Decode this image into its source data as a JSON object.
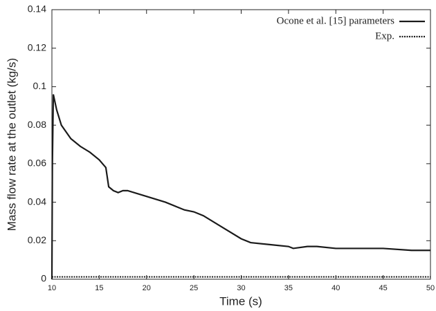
{
  "chart_data": {
    "type": "line",
    "xlabel": "Time (s)",
    "ylabel": "Mass flow rate at the outlet (kg/s)",
    "xlim": [
      10,
      50
    ],
    "ylim": [
      0,
      0.14
    ],
    "xticks": [
      10,
      15,
      20,
      25,
      30,
      35,
      40,
      45,
      50
    ],
    "yticks": [
      0,
      0.02,
      0.04,
      0.06,
      0.08,
      0.1,
      0.12,
      0.14
    ],
    "legend": "upper right",
    "series": [
      {
        "name": "Ocone et al. [15] parameters",
        "color": "#1a1a1a",
        "dash": "solid",
        "x": [
          10,
          10.05,
          10.15,
          10.5,
          11,
          12,
          13,
          14,
          15,
          15.7,
          16,
          16.5,
          17,
          17.5,
          18,
          20,
          22,
          24,
          25,
          26,
          28,
          30,
          31,
          33,
          35,
          35.5,
          37,
          38,
          40,
          42,
          45,
          48,
          50
        ],
        "values": [
          0,
          0.06,
          0.096,
          0.088,
          0.08,
          0.073,
          0.069,
          0.066,
          0.062,
          0.058,
          0.048,
          0.046,
          0.045,
          0.046,
          0.046,
          0.043,
          0.04,
          0.036,
          0.035,
          0.033,
          0.027,
          0.021,
          0.019,
          0.018,
          0.017,
          0.016,
          0.017,
          0.017,
          0.016,
          0.016,
          0.016,
          0.015,
          0.015
        ]
      },
      {
        "name": "Exp.",
        "color": "#1a1a1a",
        "dash": "dotted",
        "x": [
          10,
          50
        ],
        "values": [
          0.0012,
          0.0012
        ]
      }
    ]
  }
}
